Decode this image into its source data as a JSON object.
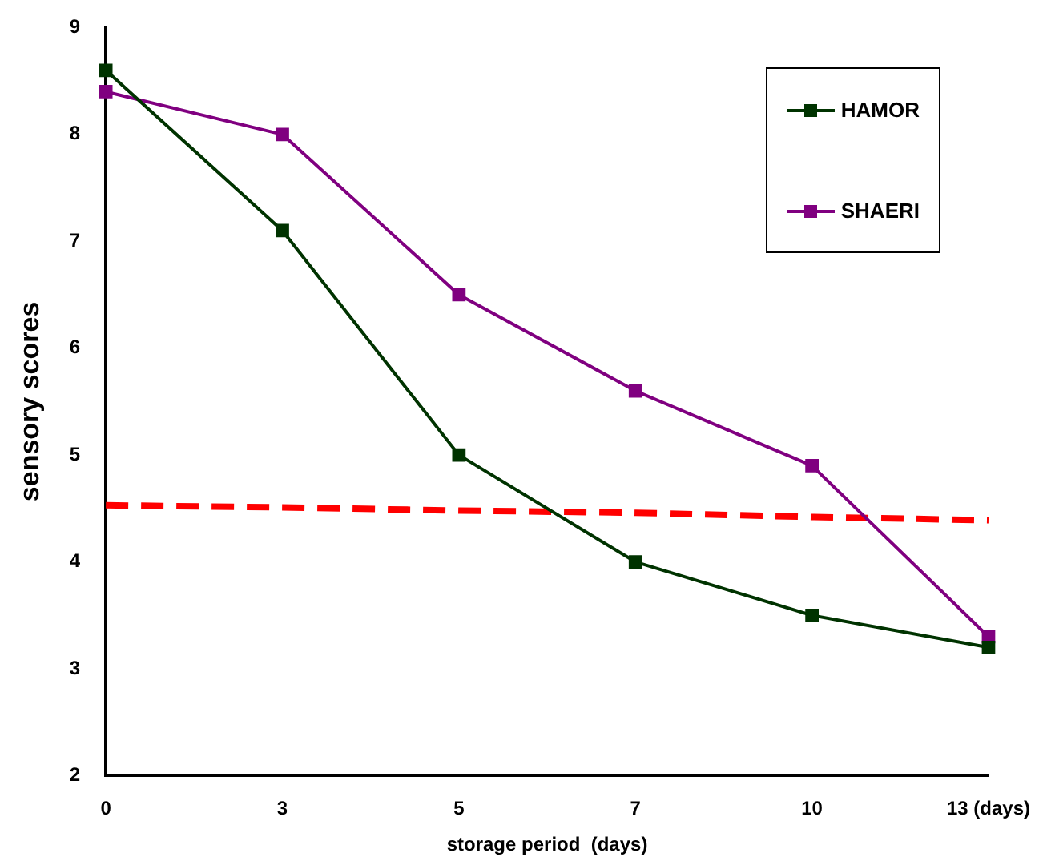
{
  "chart_data": {
    "type": "line",
    "xlabel": "storage period  (days)",
    "ylabel": "sensory scores",
    "categories": [
      "0",
      "3",
      "5",
      "7",
      "10",
      "13 (days)"
    ],
    "series": [
      {
        "name": "HAMOR",
        "color": "#003300",
        "values": [
          8.6,
          7.1,
          5.0,
          4.0,
          3.5,
          3.2
        ]
      },
      {
        "name": "SHAERI",
        "color": "#800080",
        "values": [
          8.4,
          8.0,
          6.5,
          5.6,
          4.9,
          3.3
        ]
      },
      {
        "color": "#ff0000",
        "values": [
          4.53,
          4.51,
          4.48,
          4.46,
          4.42,
          4.39
        ],
        "marker": "none",
        "line_style": "dashed"
      }
    ],
    "ylim": [
      2,
      9
    ],
    "yticks": [
      2,
      3,
      4,
      5,
      6,
      7,
      8,
      9
    ],
    "grid": false,
    "legend": "top right",
    "marker": "square",
    "line_style": "solid"
  }
}
